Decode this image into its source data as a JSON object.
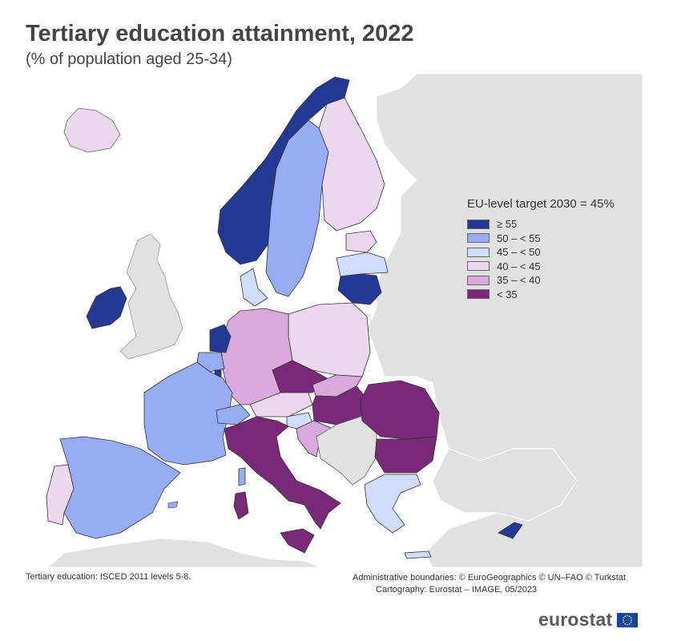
{
  "header": {
    "title": "Tertiary education attainment, 2022",
    "subtitle": "(% of population aged 25-34)"
  },
  "legend": {
    "title": "EU-level target 2030 = 45%",
    "items": [
      {
        "label": "≥ 55",
        "color": "#233a95"
      },
      {
        "label": "50 – < 55",
        "color": "#97acf4"
      },
      {
        "label": "45 – < 50",
        "color": "#d0dcfb"
      },
      {
        "label": "40 – < 45",
        "color": "#ecd8ee"
      },
      {
        "label": "35 – < 40",
        "color": "#d9a8dc"
      },
      {
        "label": "< 35",
        "color": "#7a2878"
      }
    ]
  },
  "colors": {
    "non_eu": "#e1e1e1",
    "sea": "#ffffff",
    "border": "#333333"
  },
  "footer": {
    "note": "Tertiary education: ISCED 2011 levels 5-8.",
    "credits_line1": "Administrative boundaries: © EuroGeographics © UN–FAO © Turkstat",
    "credits_line2": "Cartography: Eurostat – IMAGE, 05/2023"
  },
  "logo": {
    "text": "eurostat"
  }
}
